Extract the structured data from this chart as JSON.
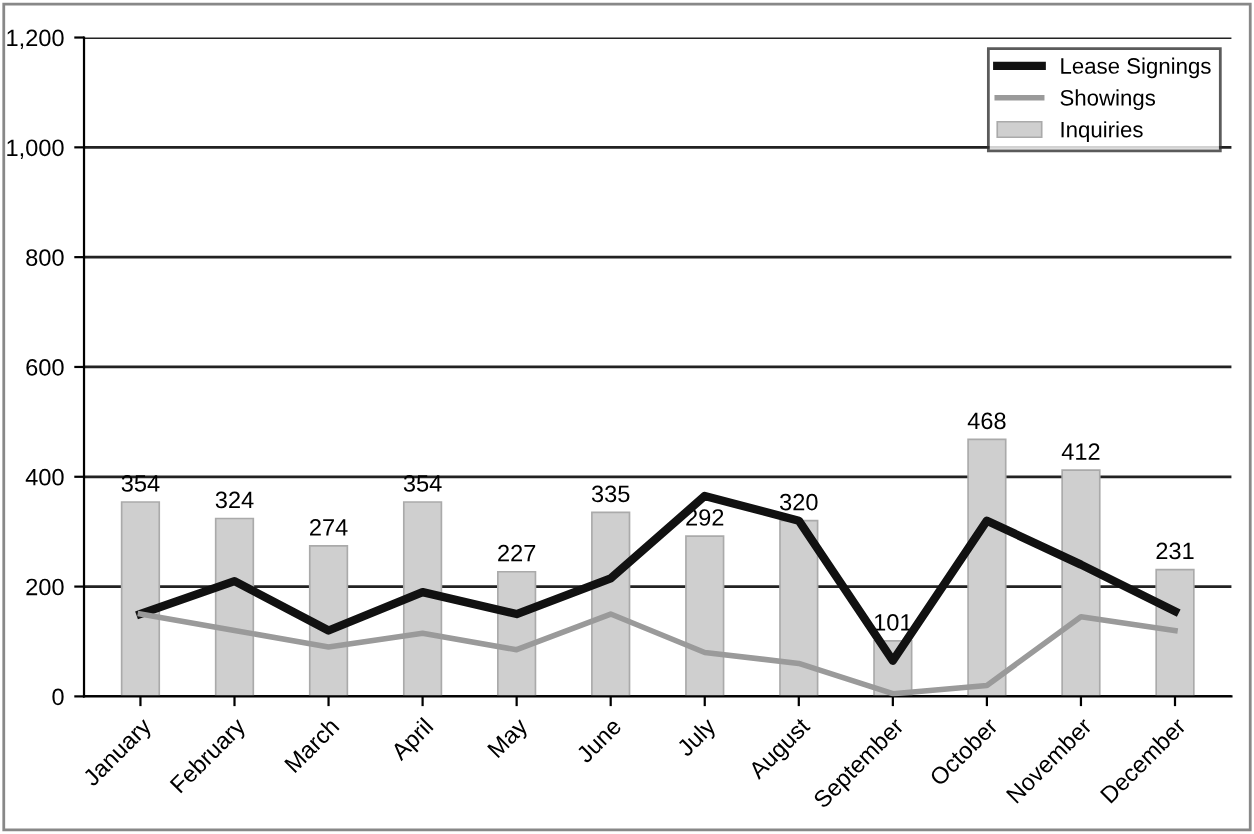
{
  "chart_data": {
    "type": "bar",
    "categories": [
      "January",
      "February",
      "March",
      "April",
      "May",
      "June",
      "July",
      "August",
      "September",
      "October",
      "November",
      "December"
    ],
    "series": [
      {
        "name": "Lease Signings",
        "type": "line",
        "color": "#111111",
        "values": [
          150,
          210,
          120,
          190,
          150,
          215,
          365,
          320,
          65,
          320,
          240,
          155
        ]
      },
      {
        "name": "Showings",
        "type": "line",
        "color": "#9a9a9a",
        "values": [
          150,
          120,
          90,
          115,
          85,
          150,
          80,
          60,
          5,
          20,
          145,
          120
        ]
      },
      {
        "name": "Inquiries",
        "color": "#cfcfcf",
        "values": [
          354,
          324,
          274,
          354,
          227,
          335,
          292,
          320,
          101,
          468,
          412,
          231
        ],
        "data_labels": true
      }
    ],
    "ylim": [
      0,
      1200
    ],
    "yticks": [
      0,
      200,
      400,
      600,
      {
        "value": 800,
        "label": "800"
      },
      {
        "value": 1000,
        "label": "1,000"
      },
      {
        "value": 1200,
        "label": "1,200"
      }
    ],
    "grid": "y",
    "legend": "top right"
  }
}
